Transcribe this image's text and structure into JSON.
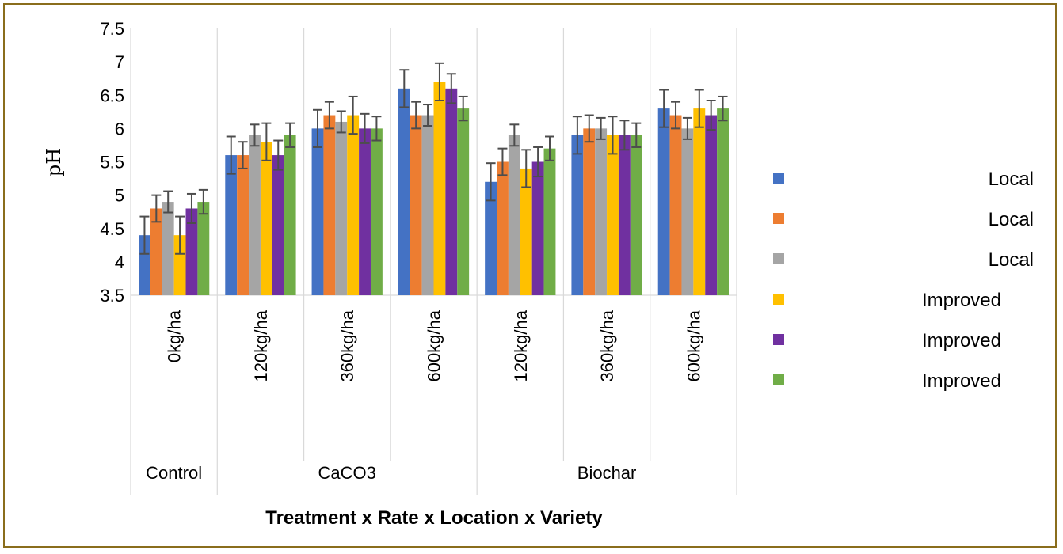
{
  "chart_data": {
    "type": "bar",
    "title": "",
    "xlabel": "Treatment x Rate x Location x Variety",
    "ylabel": "pH",
    "ylim": [
      3.5,
      7.5
    ],
    "yticks": [
      "3.5",
      "4",
      "4.5",
      "5",
      "5.5",
      "6",
      "6.5",
      "7",
      "7.5"
    ],
    "grid": "vertical",
    "legend_position": "right",
    "groups": [
      "Control",
      "CaCO3",
      "Biochar"
    ],
    "categories": [
      "0kg/ha",
      "120kg/ha",
      "360kg/ha",
      "600kg/ha",
      "120kg/ha",
      "360kg/ha",
      "600kg/ha"
    ],
    "category_group": [
      0,
      1,
      1,
      1,
      2,
      2,
      2
    ],
    "series": [
      {
        "name": "Local",
        "color": "#4472C4",
        "values": [
          4.4,
          5.6,
          6.0,
          6.6,
          5.2,
          5.9,
          6.3
        ],
        "errors": [
          0.28,
          0.28,
          0.28,
          0.28,
          0.28,
          0.28,
          0.28
        ]
      },
      {
        "name": "Local",
        "color": "#ED7D31",
        "values": [
          4.8,
          5.6,
          6.2,
          6.2,
          5.5,
          6.0,
          6.2
        ],
        "errors": [
          0.2,
          0.2,
          0.2,
          0.2,
          0.2,
          0.2,
          0.2
        ]
      },
      {
        "name": "Local",
        "color": "#A5A5A5",
        "values": [
          4.9,
          5.9,
          6.1,
          6.2,
          5.9,
          6.0,
          6.0
        ],
        "errors": [
          0.16,
          0.16,
          0.16,
          0.16,
          0.16,
          0.16,
          0.16
        ]
      },
      {
        "name": "Improved",
        "color": "#FFC000",
        "values": [
          4.4,
          5.8,
          6.2,
          6.7,
          5.4,
          5.9,
          6.3
        ],
        "errors": [
          0.28,
          0.28,
          0.28,
          0.28,
          0.28,
          0.28,
          0.28
        ]
      },
      {
        "name": "Improved",
        "color": "#7030A0",
        "values": [
          4.8,
          5.6,
          6.0,
          6.6,
          5.5,
          5.9,
          6.2
        ],
        "errors": [
          0.22,
          0.22,
          0.22,
          0.22,
          0.22,
          0.22,
          0.22
        ]
      },
      {
        "name": "Improved",
        "color": "#70AD47",
        "values": [
          4.9,
          5.9,
          6.0,
          6.3,
          5.7,
          5.9,
          6.3
        ],
        "errors": [
          0.18,
          0.18,
          0.18,
          0.18,
          0.18,
          0.18,
          0.18
        ]
      }
    ]
  }
}
